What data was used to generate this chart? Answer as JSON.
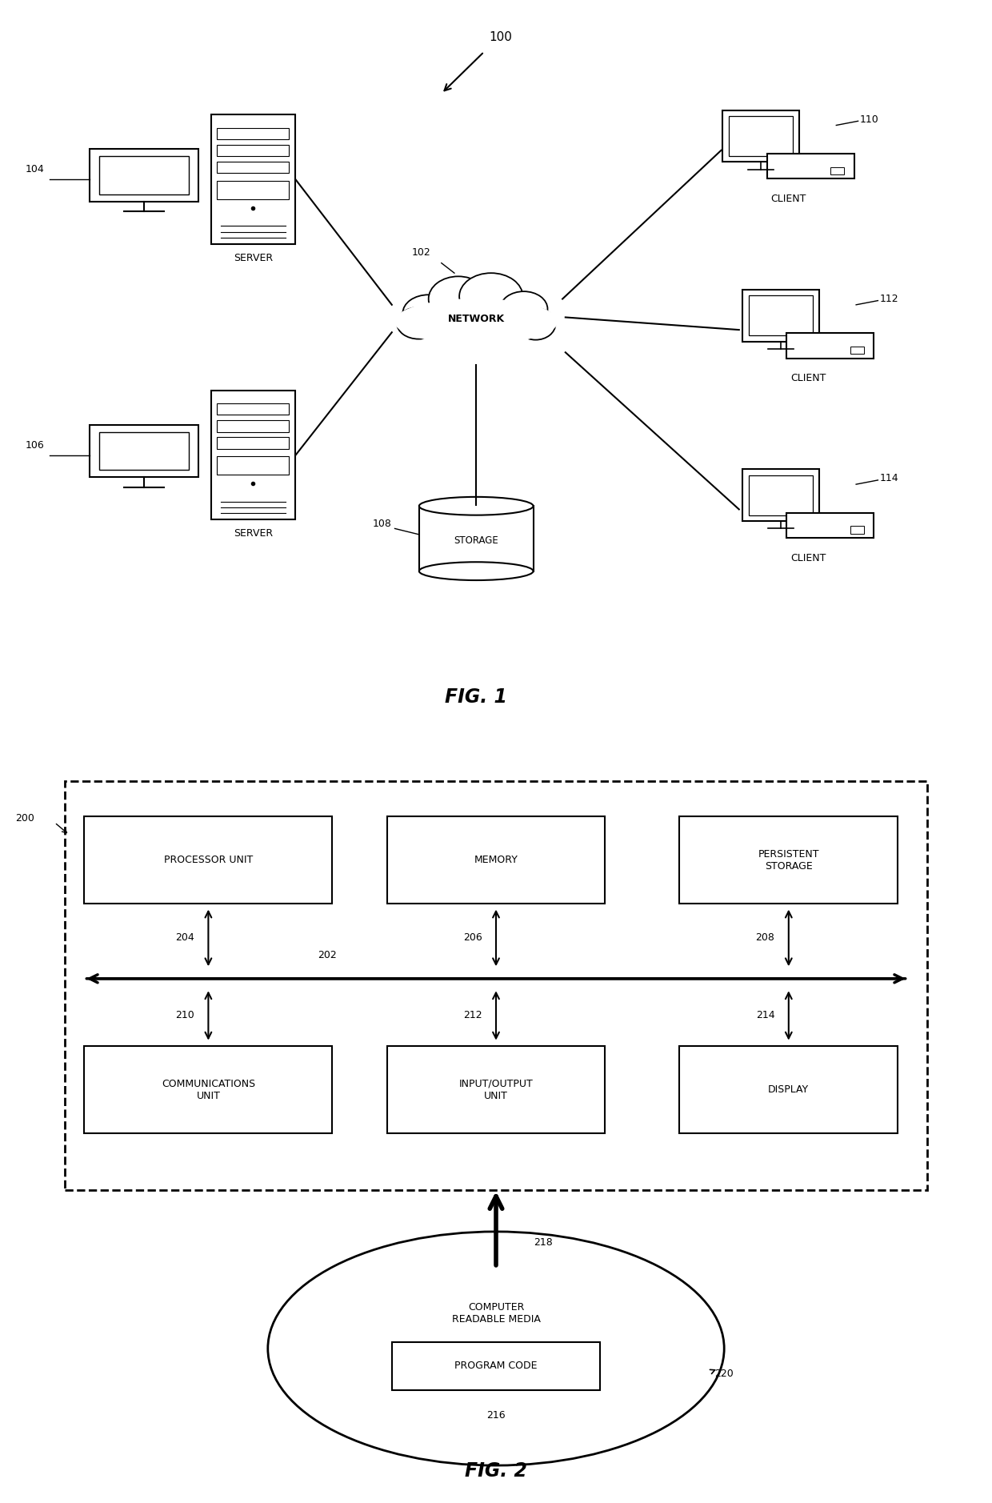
{
  "fig1": {
    "title": "FIG. 1",
    "label_100": "100",
    "label_102": "102",
    "label_104": "104",
    "label_106": "106",
    "label_108": "108",
    "label_110": "110",
    "label_112": "112",
    "label_114": "114",
    "network_label": "NETWORK",
    "storage_label": "STORAGE",
    "server_label": "SERVER",
    "client_label": "CLIENT"
  },
  "fig2": {
    "title": "FIG. 2",
    "label_200": "200",
    "label_202": "202",
    "label_204": "204",
    "label_206": "206",
    "label_208": "208",
    "label_210": "210",
    "label_212": "212",
    "label_214": "214",
    "label_216": "216",
    "label_218": "218",
    "label_220": "220",
    "proc_label": "PROCESSOR UNIT",
    "mem_label": "MEMORY",
    "persist_label": "PERSISTENT\nSTORAGE",
    "comm_label": "COMMUNICATIONS\nUNIT",
    "io_label": "INPUT/OUTPUT\nUNIT",
    "display_label": "DISPLAY",
    "media_label": "COMPUTER\nREADABLE MEDIA",
    "prog_label": "PROGRAM CODE"
  },
  "background_color": "#ffffff",
  "line_color": "#000000",
  "text_color": "#000000"
}
